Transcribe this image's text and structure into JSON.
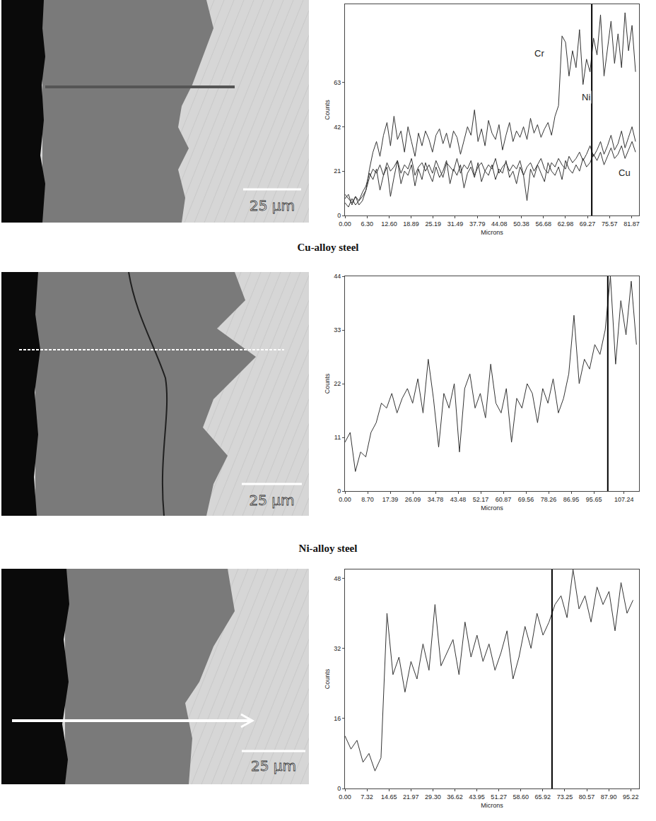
{
  "chart_data": [
    {
      "type": "line",
      "xlabel": "Microns",
      "ylabel": "Counts",
      "xlim": [
        0,
        84
      ],
      "xticks": [
        {
          "value": 0,
          "label": "0.00"
        },
        {
          "value": 6.3,
          "label": "6.30"
        },
        {
          "value": 12.6,
          "label": "12.60"
        },
        18.89,
        25.19,
        31.49,
        37.79,
        44.08,
        50.38,
        56.68,
        62.98,
        69.27,
        75.57,
        81.87
      ],
      "ylim": [
        0,
        100
      ],
      "yticks": [
        0,
        21,
        42,
        63
      ],
      "cursor_x": 70.5,
      "x": [
        0,
        1,
        2,
        3,
        4,
        5,
        6,
        7,
        8,
        9,
        10,
        11,
        12,
        13,
        14,
        15,
        16,
        17,
        18,
        19,
        20,
        21,
        22,
        23,
        24,
        25,
        26,
        27,
        28,
        29,
        30,
        31,
        32,
        33,
        34,
        35,
        36,
        37,
        38,
        39,
        40,
        41,
        42,
        43,
        44,
        45,
        46,
        47,
        48,
        49,
        50,
        51,
        52,
        53,
        54,
        55,
        56,
        57,
        58,
        59,
        60,
        61,
        62,
        63,
        64,
        65,
        66,
        67,
        68,
        69,
        70,
        71,
        72,
        73,
        74,
        75,
        76,
        77,
        78,
        79,
        80,
        81,
        82,
        83
      ],
      "series": [
        {
          "name": "Cr",
          "color": "#333333",
          "values": [
            10,
            8,
            6,
            9,
            5,
            7,
            12,
            22,
            30,
            35,
            28,
            38,
            44,
            33,
            47,
            36,
            40,
            30,
            42,
            35,
            28,
            39,
            33,
            40,
            36,
            30,
            38,
            41,
            34,
            39,
            32,
            40,
            37,
            29,
            36,
            42,
            38,
            50,
            35,
            41,
            33,
            45,
            39,
            36,
            43,
            31,
            38,
            44,
            35,
            40,
            37,
            42,
            36,
            46,
            39,
            43,
            37,
            41,
            44,
            38,
            47,
            52,
            85,
            82,
            66,
            78,
            70,
            88,
            62,
            74,
            68,
            84,
            76,
            95,
            66,
            80,
            92,
            72,
            86,
            70,
            96,
            78,
            90,
            68
          ]
        },
        {
          "name": "Ni",
          "color": "#333333",
          "values": [
            6,
            4,
            8,
            5,
            7,
            9,
            12,
            18,
            22,
            20,
            24,
            19,
            25,
            21,
            23,
            26,
            20,
            24,
            22,
            27,
            19,
            23,
            25,
            21,
            24,
            20,
            26,
            22,
            18,
            25,
            23,
            21,
            27,
            20,
            24,
            22,
            26,
            19,
            23,
            25,
            21,
            24,
            22,
            27,
            20,
            23,
            25,
            21,
            24,
            22,
            26,
            19,
            23,
            25,
            21,
            24,
            27,
            22,
            20,
            25,
            23,
            27,
            24,
            22,
            28,
            25,
            27,
            30,
            26,
            29,
            33,
            28,
            31,
            35,
            29,
            33,
            38,
            31,
            34,
            40,
            32,
            37,
            42,
            35
          ]
        },
        {
          "name": "Cu",
          "color": "#333333",
          "values": [
            8,
            10,
            5,
            9,
            7,
            11,
            14,
            20,
            17,
            22,
            12,
            19,
            23,
            9,
            18,
            26,
            15,
            21,
            19,
            24,
            14,
            22,
            17,
            25,
            20,
            16,
            23,
            18,
            21,
            26,
            15,
            22,
            19,
            24,
            13,
            20,
            23,
            18,
            25,
            16,
            21,
            19,
            24,
            17,
            22,
            20,
            26,
            18,
            21,
            15,
            23,
            19,
            7,
            22,
            18,
            24,
            20,
            16,
            25,
            21,
            19,
            23,
            17,
            26,
            22,
            20,
            24,
            21,
            27,
            23,
            25,
            29,
            26,
            30,
            24,
            28,
            32,
            27,
            29,
            33,
            27,
            31,
            35,
            30
          ]
        }
      ]
    },
    {
      "type": "line",
      "xlabel": "Microns",
      "ylabel": "Counts",
      "xlim": [
        0,
        113
      ],
      "xticks": [
        {
          "value": 0,
          "label": "0.00"
        },
        {
          "value": 8.7,
          "label": "8.70"
        },
        17.39,
        26.09,
        34.78,
        43.48,
        52.17,
        60.87,
        69.56,
        78.26,
        86.95,
        95.65,
        107.24
      ],
      "ylim": [
        0,
        44
      ],
      "yticks": [
        0,
        11,
        22,
        33,
        44
      ],
      "cursor_x": 101,
      "x": [
        0,
        2,
        4,
        6,
        8,
        10,
        12,
        14,
        16,
        18,
        20,
        22,
        24,
        26,
        28,
        30,
        32,
        34,
        36,
        38,
        40,
        42,
        44,
        46,
        48,
        50,
        52,
        54,
        56,
        58,
        60,
        62,
        64,
        66,
        68,
        70,
        72,
        74,
        76,
        78,
        80,
        82,
        84,
        86,
        88,
        90,
        92,
        94,
        96,
        98,
        100,
        102,
        104,
        106,
        108,
        110,
        112
      ],
      "series": [
        {
          "color": "#333333",
          "values": [
            10,
            12,
            4,
            8,
            7,
            12,
            14,
            18,
            17,
            20,
            16,
            19,
            21,
            18,
            23,
            16,
            27,
            19,
            9,
            20,
            17,
            22,
            8,
            21,
            24,
            17,
            20,
            15,
            26,
            18,
            16,
            21,
            10,
            19,
            17,
            22,
            20,
            14,
            21,
            18,
            23,
            16,
            19,
            24,
            36,
            22,
            27,
            25,
            30,
            28,
            33,
            44,
            26,
            39,
            32,
            43,
            30
          ]
        }
      ]
    },
    {
      "type": "line",
      "xlabel": "Microns",
      "ylabel": "Counts",
      "xlim": [
        0,
        98
      ],
      "xticks": [
        {
          "value": 0,
          "label": "0.00"
        },
        7.32,
        14.65,
        21.97,
        {
          "value": 29.3,
          "label": "29.30"
        },
        36.62,
        43.95,
        51.27,
        {
          "value": 58.6,
          "label": "58.60"
        },
        65.92,
        73.25,
        80.57,
        {
          "value": 87.9,
          "label": "87.90"
        },
        95.22
      ],
      "ylim": [
        0,
        50
      ],
      "yticks": [
        0,
        16,
        32,
        48
      ],
      "cursor_x": 69,
      "x": [
        0,
        2,
        4,
        6,
        8,
        10,
        12,
        14,
        16,
        18,
        20,
        22,
        24,
        26,
        28,
        30,
        32,
        34,
        36,
        38,
        40,
        42,
        44,
        46,
        48,
        50,
        52,
        54,
        56,
        58,
        60,
        62,
        64,
        66,
        68,
        70,
        72,
        74,
        76,
        78,
        80,
        82,
        84,
        86,
        88,
        90,
        92,
        94,
        96
      ],
      "series": [
        {
          "color": "#333333",
          "values": [
            12,
            9,
            11,
            6,
            8,
            4,
            7,
            40,
            26,
            30,
            22,
            29,
            25,
            33,
            27,
            42,
            28,
            31,
            34,
            26,
            38,
            30,
            35,
            29,
            33,
            27,
            31,
            36,
            25,
            30,
            37,
            32,
            40,
            35,
            38,
            42,
            44,
            39,
            50,
            41,
            44,
            38,
            46,
            42,
            45,
            36,
            47,
            40,
            43
          ]
        }
      ]
    }
  ],
  "micrographs": [
    {
      "scale_bar": "25 µm",
      "caption": "Cu-alloy steel"
    },
    {
      "scale_bar": "25 µm",
      "caption": "Ni-alloy steel"
    },
    {
      "scale_bar": "25 µm"
    }
  ]
}
